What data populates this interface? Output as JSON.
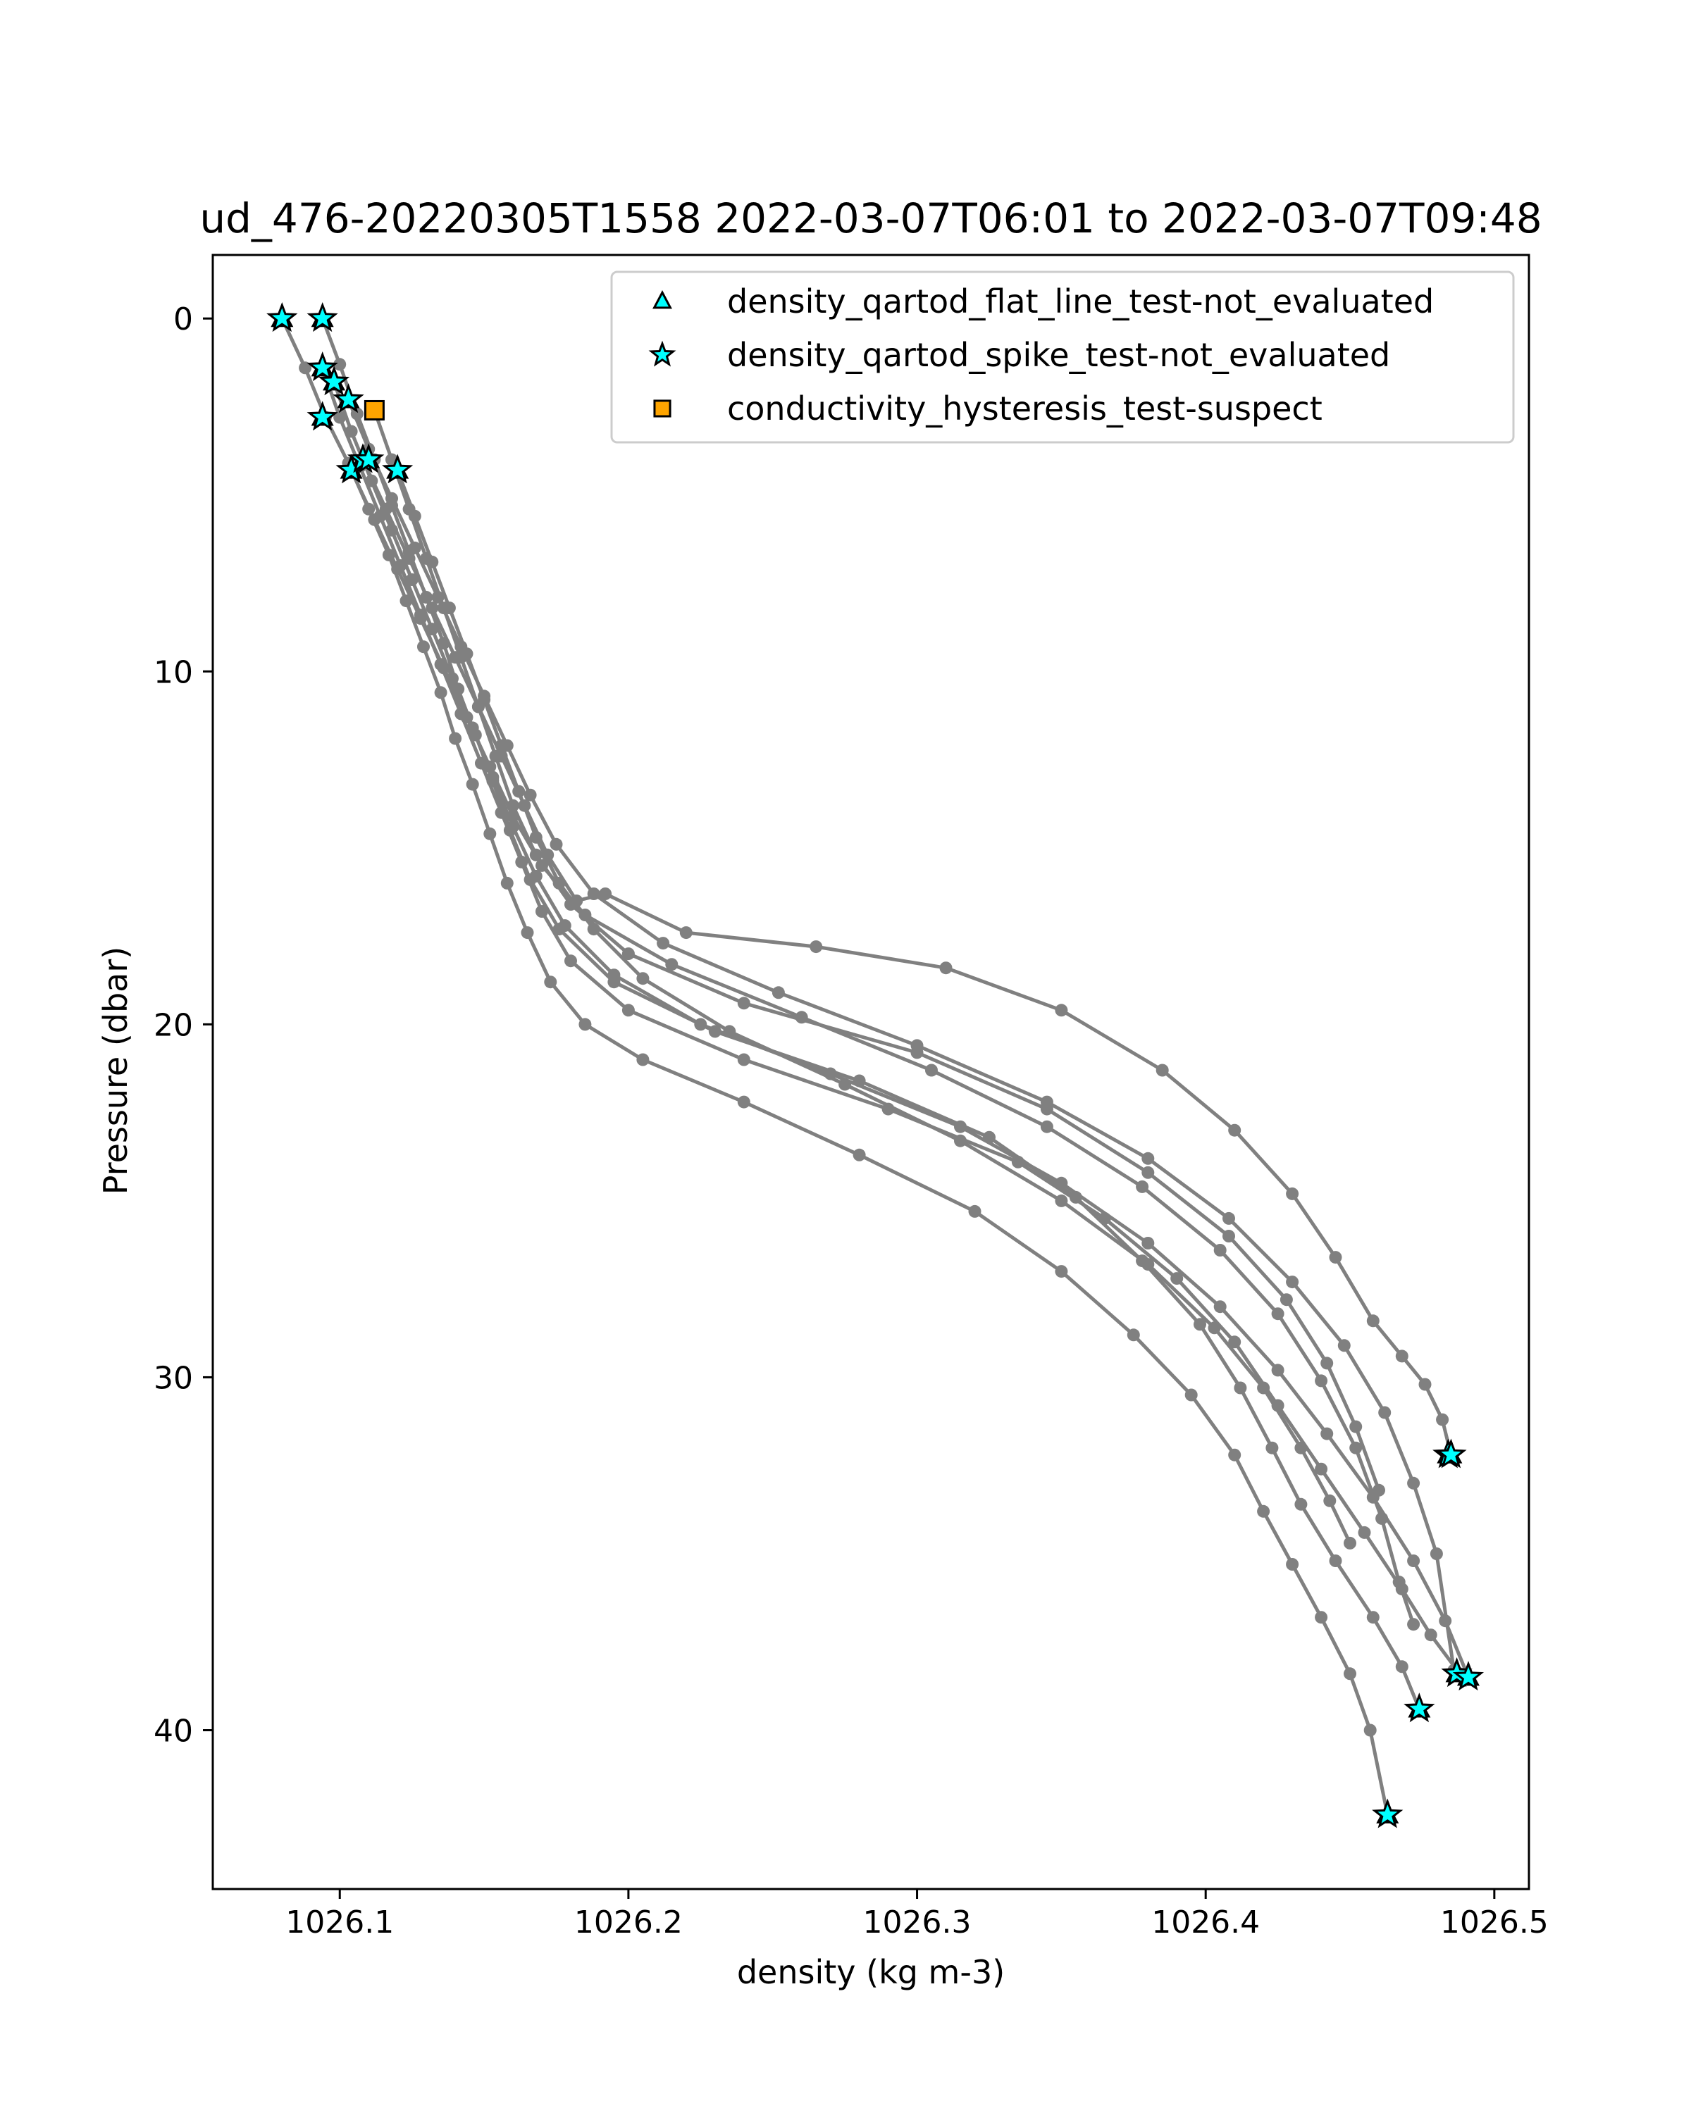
{
  "chart_data": {
    "type": "scatter",
    "title": "ud_476-20220305T1558 2022-03-07T06:01 to 2022-03-07T09:48",
    "xlabel": "density (kg m-3)",
    "ylabel": "Pressure (dbar)",
    "xlim": [
      1026.056,
      1026.512
    ],
    "ylim": [
      44.5,
      -1.8
    ],
    "y_inverted": true,
    "xticks": [
      1026.1,
      1026.2,
      1026.3,
      1026.4,
      1026.5
    ],
    "xtick_labels": [
      "1026.1",
      "1026.2",
      "1026.3",
      "1026.4",
      "1026.5"
    ],
    "yticks": [
      0,
      10,
      20,
      30,
      40
    ],
    "ytick_labels": [
      "0",
      "10",
      "20",
      "30",
      "40"
    ],
    "grid": false,
    "legend_position": "top-right",
    "profile_color": "#808080",
    "profiles": [
      {
        "x": [
          1026.08,
          1026.088,
          1026.095,
          1026.103,
          1026.11,
          1026.117,
          1026.123,
          1026.129,
          1026.135,
          1026.14,
          1026.146,
          1026.152,
          1026.158,
          1026.165,
          1026.173,
          1026.185,
          1026.205,
          1026.24,
          1026.28,
          1026.32,
          1026.35,
          1026.375,
          1026.395,
          1026.41,
          1026.42,
          1026.43,
          1026.44,
          1026.45,
          1026.457,
          1026.463
        ],
        "y": [
          0.0,
          1.4,
          2.8,
          4.1,
          5.4,
          6.7,
          8.0,
          9.3,
          10.6,
          11.9,
          13.2,
          14.6,
          16.0,
          17.4,
          18.8,
          20.0,
          21.0,
          22.2,
          23.7,
          25.3,
          27.0,
          28.8,
          30.5,
          32.2,
          33.8,
          35.3,
          36.8,
          38.4,
          40.0,
          42.4
        ]
      },
      {
        "x": [
          1026.094,
          1026.1,
          1026.106,
          1026.112,
          1026.118,
          1026.124,
          1026.13,
          1026.136,
          1026.141,
          1026.147,
          1026.153,
          1026.159,
          1026.166,
          1026.176,
          1026.195,
          1026.23,
          1026.28,
          1026.325,
          1026.355,
          1026.378,
          1026.398,
          1026.412,
          1026.423,
          1026.433,
          1026.445,
          1026.458,
          1026.468,
          1026.474
        ],
        "y": [
          0.0,
          1.3,
          2.7,
          4.0,
          5.3,
          6.6,
          7.9,
          9.2,
          10.5,
          11.8,
          13.1,
          14.5,
          15.9,
          17.3,
          18.8,
          20.2,
          21.6,
          23.2,
          24.9,
          26.7,
          28.5,
          30.3,
          32.0,
          33.6,
          35.2,
          36.8,
          38.2,
          39.4
        ]
      },
      {
        "x": [
          1026.094,
          1026.1,
          1026.107,
          1026.114,
          1026.121,
          1026.128,
          1026.135,
          1026.142,
          1026.149,
          1026.156,
          1026.163,
          1026.17,
          1026.18,
          1026.2,
          1026.24,
          1026.29,
          1026.335,
          1026.365,
          1026.39,
          1026.41,
          1026.425,
          1026.44,
          1026.455,
          1026.468,
          1026.478,
          1026.488
        ],
        "y": [
          1.4,
          2.8,
          4.2,
          5.6,
          7.0,
          8.4,
          9.8,
          11.2,
          12.6,
          14.0,
          15.4,
          16.8,
          18.2,
          19.6,
          21.0,
          22.4,
          23.9,
          25.5,
          27.2,
          29.0,
          30.8,
          32.6,
          34.4,
          36.0,
          37.3,
          38.4
        ]
      },
      {
        "x": [
          1026.098,
          1026.104,
          1026.111,
          1026.118,
          1026.125,
          1026.132,
          1026.139,
          1026.146,
          1026.153,
          1026.16,
          1026.168,
          1026.178,
          1026.195,
          1026.225,
          1026.27,
          1026.315,
          1026.35,
          1026.38,
          1026.405,
          1026.425,
          1026.442,
          1026.458,
          1026.472,
          1026.483,
          1026.491
        ],
        "y": [
          1.8,
          3.2,
          4.6,
          6.0,
          7.4,
          8.8,
          10.2,
          11.6,
          13.0,
          14.4,
          15.8,
          17.2,
          18.6,
          20.0,
          21.4,
          22.9,
          24.5,
          26.2,
          28.0,
          29.8,
          31.6,
          33.4,
          35.2,
          36.9,
          38.5
        ]
      },
      {
        "x": [
          1026.103,
          1026.11,
          1026.118,
          1026.126,
          1026.134,
          1026.142,
          1026.15,
          1026.158,
          1026.166,
          1026.175,
          1026.188,
          1026.212,
          1026.252,
          1026.3,
          1026.345,
          1026.38,
          1026.408,
          1026.43,
          1026.448,
          1026.462,
          1026.472,
          1026.48,
          1026.486
        ],
        "y": [
          2.3,
          3.7,
          5.1,
          6.5,
          7.9,
          9.3,
          10.7,
          12.1,
          13.5,
          14.9,
          16.3,
          17.7,
          19.1,
          20.6,
          22.2,
          23.8,
          25.5,
          27.3,
          29.1,
          31.0,
          33.0,
          35.0,
          38.3
        ]
      },
      {
        "x": [
          1026.108,
          1026.116,
          1026.124,
          1026.132,
          1026.14,
          1026.148,
          1026.156,
          1026.164,
          1026.172,
          1026.182,
          1026.192,
          1026.22,
          1026.265,
          1026.31,
          1026.35,
          1026.385,
          1026.41,
          1026.43,
          1026.445,
          1026.458,
          1026.468,
          1026.476,
          1026.482,
          1026.485
        ],
        "y": [
          4.0,
          5.4,
          6.8,
          8.2,
          9.6,
          11.0,
          12.4,
          13.8,
          15.2,
          16.5,
          16.3,
          17.4,
          17.8,
          18.4,
          19.6,
          21.3,
          23.0,
          24.8,
          26.6,
          28.4,
          29.4,
          30.2,
          31.2,
          32.2
        ]
      },
      {
        "x": [
          1026.112,
          1026.118,
          1026.124,
          1026.13,
          1026.136,
          1026.142,
          1026.148,
          1026.154,
          1026.16,
          1026.168,
          1026.18,
          1026.2,
          1026.24,
          1026.3,
          1026.345,
          1026.38,
          1026.408,
          1026.428,
          1026.442,
          1026.452,
          1026.46
        ],
        "y": [
          2.6,
          4.0,
          5.4,
          6.8,
          8.2,
          9.6,
          11.0,
          12.4,
          13.8,
          15.2,
          16.6,
          18.0,
          19.4,
          20.8,
          22.4,
          24.2,
          26.0,
          27.8,
          29.6,
          31.4,
          33.2
        ]
      },
      {
        "x": [
          1026.104,
          1026.112,
          1026.12,
          1026.128,
          1026.136,
          1026.144,
          1026.152,
          1026.16,
          1026.17,
          1026.185,
          1026.215,
          1026.26,
          1026.305,
          1026.345,
          1026.378,
          1026.405,
          1026.425,
          1026.44,
          1026.452,
          1026.461,
          1026.467,
          1026.472
        ],
        "y": [
          4.3,
          5.7,
          7.1,
          8.5,
          9.9,
          11.3,
          12.7,
          14.1,
          15.5,
          16.9,
          18.3,
          19.8,
          21.3,
          22.9,
          24.6,
          26.4,
          28.2,
          30.1,
          32.0,
          34.0,
          35.8,
          37.0
        ]
      },
      {
        "x": [
          1026.12,
          1026.126,
          1026.132,
          1026.138,
          1026.144,
          1026.15,
          1026.156,
          1026.162,
          1026.168,
          1026.176,
          1026.188,
          1026.205,
          1026.235,
          1026.275,
          1026.315,
          1026.35,
          1026.38,
          1026.403,
          1026.42,
          1026.433,
          1026.443,
          1026.45
        ],
        "y": [
          4.3,
          5.6,
          6.9,
          8.2,
          9.5,
          10.8,
          12.1,
          13.4,
          14.7,
          16.0,
          17.3,
          18.7,
          20.2,
          21.7,
          23.3,
          25.0,
          26.8,
          28.6,
          30.3,
          32.0,
          33.5,
          34.7
        ]
      }
    ],
    "series": [
      {
        "name": "density_qartod_flat_line_test-not_evaluated",
        "marker": "triangle",
        "color": "#00FFFF",
        "x": [
          1026.08,
          1026.094,
          1026.094,
          1026.098,
          1026.103,
          1026.094,
          1026.104,
          1026.108,
          1026.11,
          1026.12,
          1026.463,
          1026.474,
          1026.484,
          1026.485,
          1026.487,
          1026.491
        ],
        "y": [
          0.0,
          0.0,
          1.4,
          1.8,
          2.3,
          2.8,
          4.3,
          4.0,
          4.0,
          4.3,
          42.4,
          39.4,
          32.2,
          32.2,
          38.4,
          38.5
        ]
      },
      {
        "name": "density_qartod_spike_test-not_evaluated",
        "marker": "star",
        "color": "#00FFFF",
        "x": [
          1026.08,
          1026.094,
          1026.094,
          1026.098,
          1026.103,
          1026.094,
          1026.104,
          1026.108,
          1026.11,
          1026.12,
          1026.463,
          1026.474,
          1026.484,
          1026.485,
          1026.487,
          1026.491
        ],
        "y": [
          0.0,
          0.0,
          1.4,
          1.8,
          2.3,
          2.8,
          4.3,
          4.0,
          4.0,
          4.3,
          42.4,
          39.4,
          32.2,
          32.2,
          38.4,
          38.5
        ]
      },
      {
        "name": "conductivity_hysteresis_test-suspect",
        "marker": "square",
        "color": "#FFA500",
        "x": [
          1026.112
        ],
        "y": [
          2.6
        ]
      }
    ]
  }
}
